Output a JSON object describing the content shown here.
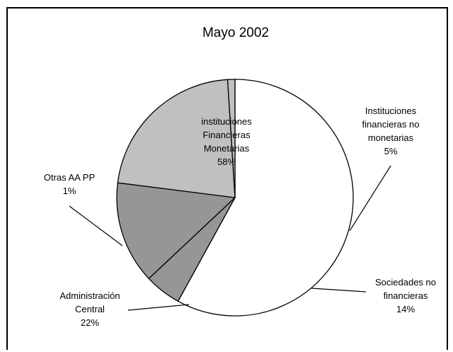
{
  "chart_data": {
    "type": "pie",
    "title": "Mayo 2002",
    "slices": [
      {
        "name_lines": [
          "instituciones",
          "Financieras",
          "Monetarias"
        ],
        "percent_label": "58%",
        "value": 58,
        "color": "#ffffff"
      },
      {
        "name_lines": [
          "Instituciones",
          "financieras no",
          "monetarias"
        ],
        "percent_label": "5%",
        "value": 5,
        "color": "#969696"
      },
      {
        "name_lines": [
          "Sociedades no",
          "financieras"
        ],
        "percent_label": "14%",
        "value": 14,
        "color": "#969696"
      },
      {
        "name_lines": [
          "Administración",
          "Central"
        ],
        "percent_label": "22%",
        "value": 22,
        "color": "#c0c0c0"
      },
      {
        "name_lines": [
          "Otras AA PP"
        ],
        "percent_label": "1%",
        "value": 1,
        "color": "#c0c0c0"
      }
    ],
    "legend": "none"
  }
}
